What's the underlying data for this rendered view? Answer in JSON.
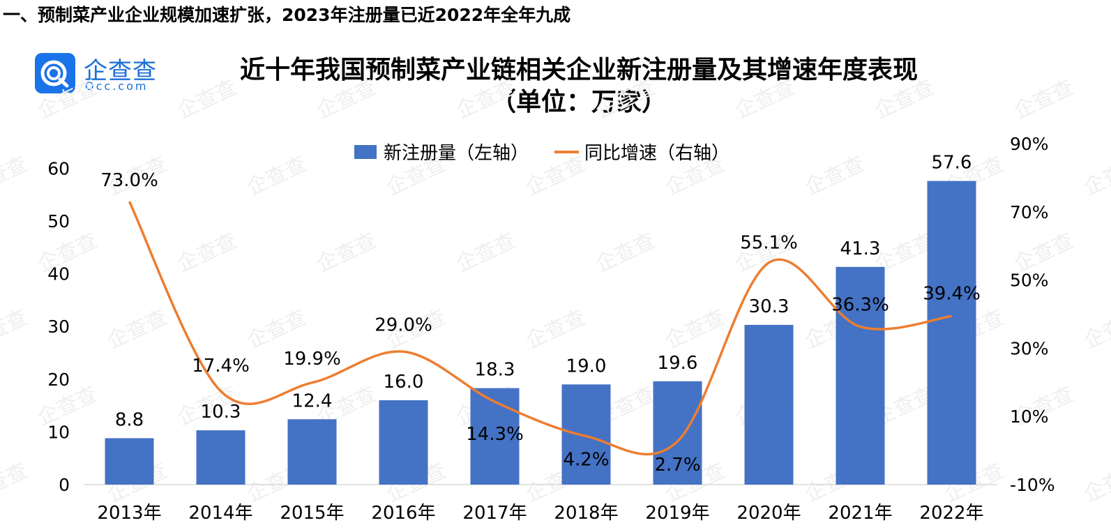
{
  "section_heading": "一、预制菜产业企业规模加速扩张，2023年注册量已近2022年全年九成",
  "logo": {
    "name": "企查查",
    "domain": "Qcc.com",
    "color": "#1a73e8"
  },
  "chart_data": {
    "type": "bar",
    "title": "近十年我国预制菜产业链相关企业新注册量及其增速年度表现",
    "subtitle": "（单位：万家）",
    "categories": [
      "2013年",
      "2014年",
      "2015年",
      "2016年",
      "2017年",
      "2018年",
      "2019年",
      "2020年",
      "2021年",
      "2022年"
    ],
    "series": [
      {
        "name": "新注册量（左轴）",
        "type": "bar",
        "axis": "left",
        "color": "#4472c4",
        "values": [
          8.8,
          10.3,
          12.4,
          16.0,
          18.3,
          19.0,
          19.6,
          30.3,
          41.3,
          57.6
        ],
        "labels": [
          "8.8",
          "10.3",
          "12.4",
          "16.0",
          "18.3",
          "19.0",
          "19.6",
          "30.3",
          "41.3",
          "57.6"
        ]
      },
      {
        "name": "同比增速（右轴）",
        "type": "line",
        "axis": "right",
        "color": "#ed7d31",
        "smooth": true,
        "values": [
          73.0,
          17.4,
          19.9,
          29.0,
          14.3,
          4.2,
          2.7,
          55.1,
          36.3,
          39.4
        ],
        "labels": [
          "73.0%",
          "17.4%",
          "19.9%",
          "29.0%",
          "14.3%",
          "4.2%",
          "2.7%",
          "55.1%",
          "36.3%",
          "39.4%"
        ]
      }
    ],
    "y_left": {
      "min": 0,
      "max": 60,
      "ticks": [
        "0",
        "10",
        "20",
        "30",
        "40",
        "50",
        "60"
      ]
    },
    "y_right": {
      "min": -10,
      "max": 90,
      "ticks": [
        "-10%",
        "10%",
        "30%",
        "50%",
        "70%",
        "90%"
      ]
    },
    "legend_position": "top-center",
    "grid": false,
    "watermark": "企查查"
  }
}
